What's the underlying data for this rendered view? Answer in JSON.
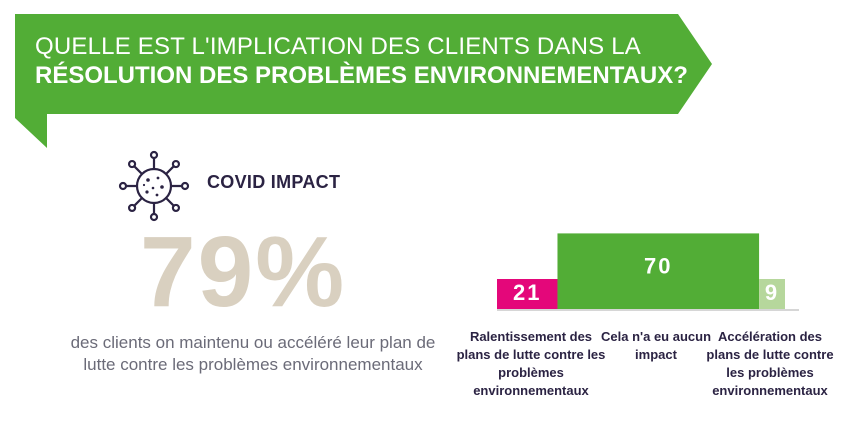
{
  "title": {
    "line1": "QUELLE EST L'IMPLICATION DES CLIENTS DANS LA",
    "line2": "RÉSOLUTION DES PROBLÈMES ENVIRONNEMENTAUX?"
  },
  "covid": {
    "label": "COVID IMPACT",
    "icon": "virus-icon"
  },
  "stat": {
    "value": "79%",
    "description": "des clients on maintenu ou accéléré leur plan de lutte contre les problèmes environnementaux"
  },
  "colors": {
    "green": "#52ad36",
    "magenta": "#e4077a",
    "light_green": "#b6d79c",
    "navy": "#2b2343",
    "beige": "#d9d0c0"
  },
  "chart_data": {
    "type": "bar",
    "categories": [
      "Ralentissement des plans de lutte contre les problèmes environnementaux",
      "Cela n'a eu aucun impact",
      "Accélération des plans de lutte contre les problèmes environnementaux"
    ],
    "values": [
      21,
      70,
      9
    ],
    "value_labels": [
      "21",
      "70",
      "9"
    ],
    "colors": [
      "#e4077a",
      "#52ad36",
      "#b6d79c"
    ]
  }
}
